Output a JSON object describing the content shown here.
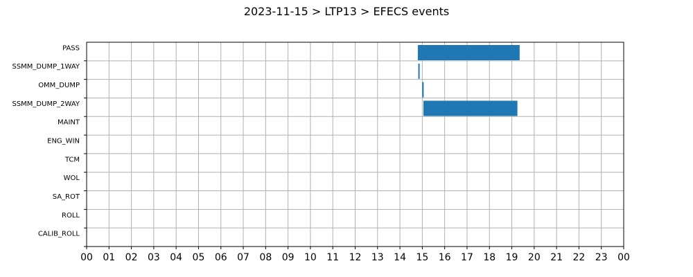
{
  "chart_data": {
    "type": "bar",
    "orientation": "horizontal-timeline",
    "title": "2023-11-15 > LTP13 > EFECS events",
    "xlabel": "",
    "ylabel": "",
    "xlim": [
      0,
      24
    ],
    "x_tick_labels": [
      "00",
      "01",
      "02",
      "03",
      "04",
      "05",
      "06",
      "07",
      "08",
      "09",
      "10",
      "11",
      "12",
      "13",
      "14",
      "15",
      "16",
      "17",
      "18",
      "19",
      "20",
      "21",
      "22",
      "23",
      "00"
    ],
    "categories": [
      "PASS",
      "SSMM_DUMP_1WAY",
      "OMM_DUMP",
      "SSMM_DUMP_2WAY",
      "MAINT",
      "ENG_WIN",
      "TCM",
      "WOL",
      "SA_ROT",
      "ROLL",
      "CALIB_ROLL"
    ],
    "series": [
      {
        "color": "#1f77b4",
        "bars": [
          {
            "category": "PASS",
            "start": 14.8,
            "end": 19.35
          },
          {
            "category": "SSMM_DUMP_1WAY",
            "start": 14.82,
            "end": 14.87
          },
          {
            "category": "OMM_DUMP",
            "start": 15.0,
            "end": 15.05
          },
          {
            "category": "SSMM_DUMP_2WAY",
            "start": 15.05,
            "end": 19.25
          }
        ]
      }
    ],
    "grid": true
  }
}
